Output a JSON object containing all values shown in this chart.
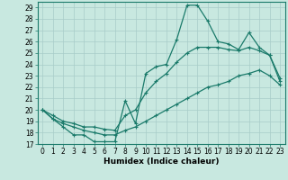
{
  "title": "",
  "xlabel": "Humidex (Indice chaleur)",
  "bg_color": "#c8e8e0",
  "line_color": "#1a7a6a",
  "grid_color": "#a8ccc8",
  "x": [
    0,
    1,
    2,
    3,
    4,
    5,
    6,
    7,
    8,
    9,
    10,
    11,
    12,
    13,
    14,
    15,
    16,
    17,
    18,
    19,
    20,
    21,
    22,
    23
  ],
  "line_top": [
    20,
    19.2,
    18.5,
    17.8,
    17.8,
    17.2,
    17.2,
    17.2,
    20.8,
    18.8,
    23.2,
    23.8,
    24.0,
    26.2,
    29.2,
    29.2,
    27.8,
    26.0,
    25.8,
    25.3,
    26.8,
    25.5,
    24.8,
    22.8
  ],
  "line_mid": [
    20,
    19.5,
    19.0,
    18.8,
    18.5,
    18.5,
    18.3,
    18.2,
    19.5,
    20.0,
    21.5,
    22.5,
    23.2,
    24.2,
    25.0,
    25.5,
    25.5,
    25.5,
    25.3,
    25.2,
    25.5,
    25.2,
    24.8,
    22.5
  ],
  "line_bot": [
    20,
    19.2,
    18.8,
    18.5,
    18.2,
    18.0,
    17.8,
    17.8,
    18.2,
    18.5,
    19.0,
    19.5,
    20.0,
    20.5,
    21.0,
    21.5,
    22.0,
    22.2,
    22.5,
    23.0,
    23.2,
    23.5,
    23.0,
    22.2
  ],
  "ylim": [
    17,
    29.5
  ],
  "xlim": [
    -0.5,
    23.5
  ],
  "yticks": [
    17,
    18,
    19,
    20,
    21,
    22,
    23,
    24,
    25,
    26,
    27,
    28,
    29
  ],
  "xticks": [
    0,
    1,
    2,
    3,
    4,
    5,
    6,
    7,
    8,
    9,
    10,
    11,
    12,
    13,
    14,
    15,
    16,
    17,
    18,
    19,
    20,
    21,
    22,
    23
  ],
  "tick_fontsize": 5.5,
  "xlabel_fontsize": 6.5
}
